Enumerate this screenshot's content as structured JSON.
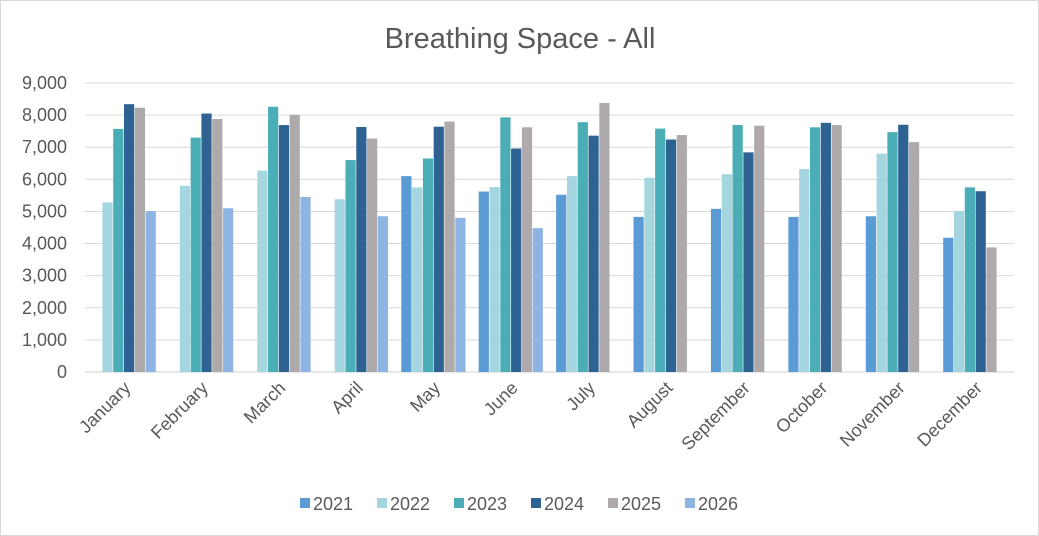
{
  "chart_data": {
    "type": "bar",
    "title": "Breathing Space - All",
    "xlabel": "",
    "ylabel": "",
    "ylim": [
      0,
      9000
    ],
    "yticks": [
      "0",
      "1,000",
      "2,000",
      "3,000",
      "4,000",
      "5,000",
      "6,000",
      "7,000",
      "8,000",
      "9,000"
    ],
    "grid": true,
    "legend_position": "bottom",
    "categories": [
      "January",
      "February",
      "March",
      "April",
      "May",
      "June",
      "July",
      "August",
      "September",
      "October",
      "November",
      "December"
    ],
    "series": [
      {
        "name": "2021",
        "color": "#5b9bd5",
        "values": [
          null,
          null,
          null,
          null,
          6100,
          5620,
          5520,
          4830,
          5080,
          4830,
          4850,
          4180
        ]
      },
      {
        "name": "2022",
        "color": "#a5d5de",
        "values": [
          5280,
          5800,
          6270,
          5380,
          5750,
          5760,
          6100,
          6050,
          6160,
          6320,
          6800,
          5010
        ]
      },
      {
        "name": "2023",
        "color": "#4badb5",
        "values": [
          7570,
          7300,
          8260,
          6600,
          6650,
          7930,
          7780,
          7580,
          7690,
          7620,
          7470,
          5750
        ]
      },
      {
        "name": "2024",
        "color": "#2e6293",
        "values": [
          8340,
          8050,
          7690,
          7630,
          7640,
          6960,
          7360,
          7240,
          6840,
          7760,
          7700,
          5630
        ]
      },
      {
        "name": "2025",
        "color": "#aeaaab",
        "values": [
          8230,
          7880,
          8010,
          7270,
          7800,
          7620,
          8380,
          7380,
          7670,
          7690,
          7160,
          3880
        ]
      },
      {
        "name": "2026",
        "color": "#8eb4e3",
        "values": [
          5010,
          5100,
          5450,
          4850,
          4800,
          4480,
          null,
          null,
          null,
          null,
          null,
          null
        ]
      }
    ]
  }
}
